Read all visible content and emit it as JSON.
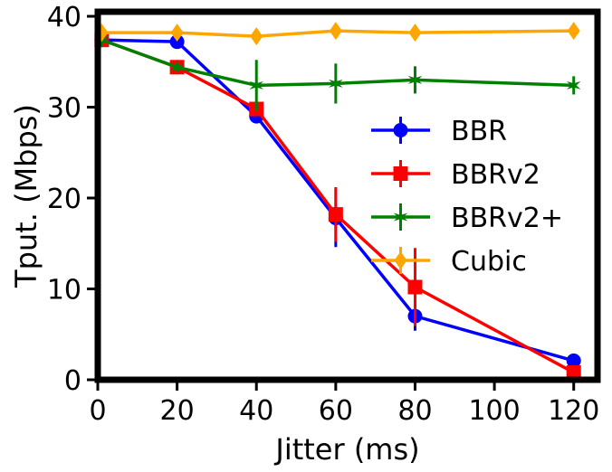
{
  "chart_data": {
    "type": "line",
    "xlabel": "Jitter (ms)",
    "ylabel": "Tput. (Mbps)",
    "xlim": [
      0,
      126
    ],
    "ylim": [
      0,
      40.5
    ],
    "xticks": [
      0,
      20,
      40,
      60,
      80,
      100,
      120
    ],
    "yticks": [
      0,
      10,
      20,
      30,
      40
    ],
    "legend_position": "center-right",
    "series": [
      {
        "name": "BBR",
        "color": "#0000ff",
        "marker": "circle",
        "x": [
          1,
          20,
          40,
          60,
          80,
          120
        ],
        "values": [
          37.4,
          37.2,
          29.0,
          17.8,
          7.0,
          2.1
        ],
        "err": [
          0.3,
          0.4,
          0.6,
          3.2,
          1.6,
          0.5
        ]
      },
      {
        "name": "BBRv2",
        "color": "#ff0000",
        "marker": "square",
        "x": [
          1,
          20,
          40,
          60,
          80,
          120
        ],
        "values": [
          37.4,
          34.4,
          29.8,
          18.2,
          10.2,
          0.8
        ],
        "err": [
          0.4,
          0.4,
          0.6,
          3.0,
          4.3,
          0.3
        ]
      },
      {
        "name": "BBRv2+",
        "color": "#008000",
        "marker": "star",
        "x": [
          1,
          20,
          40,
          60,
          80,
          120
        ],
        "values": [
          37.4,
          34.4,
          32.4,
          32.6,
          33.0,
          32.4
        ],
        "err": [
          0.4,
          0.4,
          2.8,
          2.2,
          1.5,
          1.0
        ]
      },
      {
        "name": "Cubic",
        "color": "#ffa500",
        "marker": "diamond",
        "x": [
          1,
          20,
          40,
          60,
          80,
          120
        ],
        "values": [
          38.2,
          38.2,
          37.8,
          38.4,
          38.2,
          38.4
        ],
        "err": [
          0.2,
          0.2,
          0.3,
          0.3,
          0.2,
          0.2
        ]
      }
    ]
  }
}
